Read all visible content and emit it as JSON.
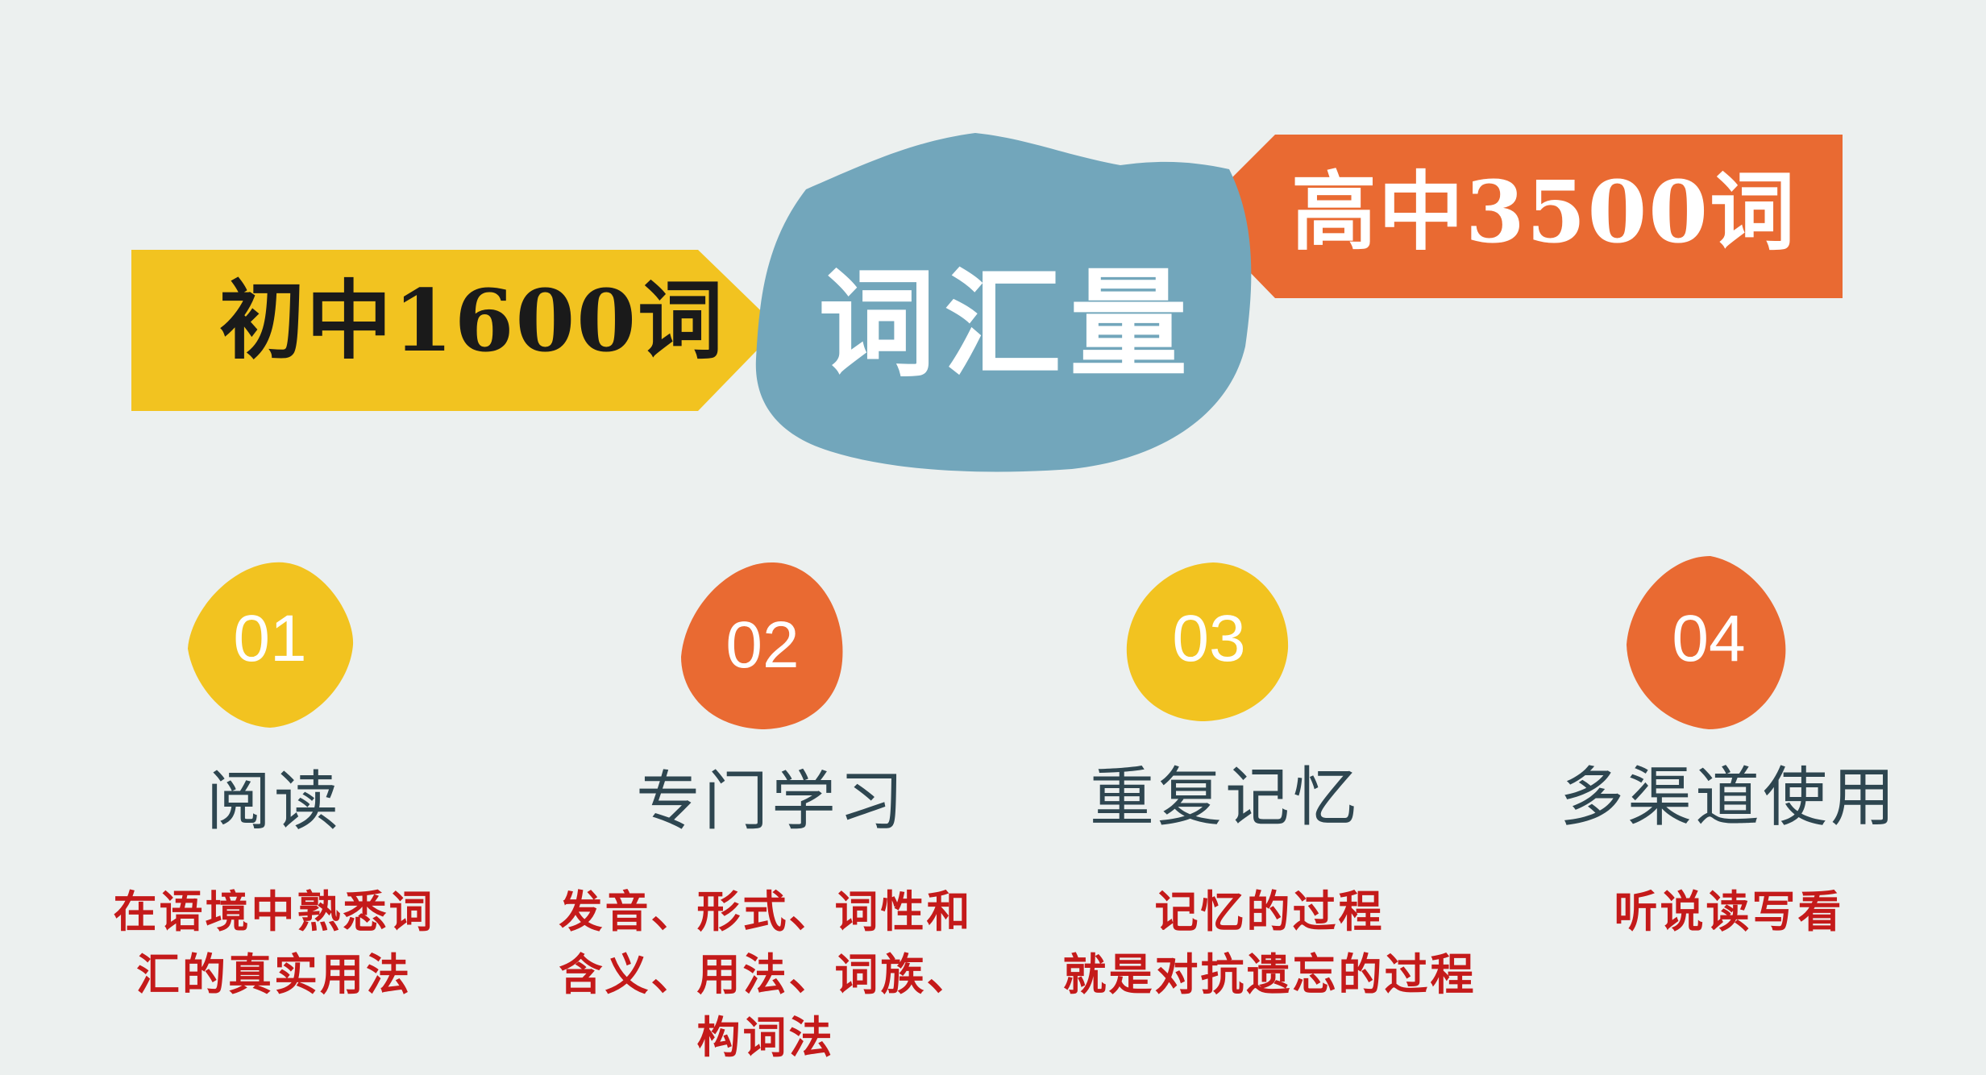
{
  "header": {
    "left_arrow": "初中1600词",
    "center": "词汇量",
    "right_arrow": "高中3500词"
  },
  "colors": {
    "background": "#ecf0ef",
    "yellow": "#f2c320",
    "orange": "#e96a32",
    "blue_blob": "#72a6bb",
    "title_text": "#2e4650",
    "desc_text": "#c41a1a"
  },
  "items": [
    {
      "number": "01",
      "title": "阅读",
      "desc_lines": [
        "在语境中熟悉词",
        "汇的真实用法"
      ]
    },
    {
      "number": "02",
      "title": "专门学习",
      "desc_lines": [
        "发音、形式、词性和",
        "含义、用法、词族、",
        "构词法"
      ]
    },
    {
      "number": "03",
      "title": "重复记忆",
      "desc_lines": [
        "记忆的过程",
        "就是对抗遗忘的过程"
      ]
    },
    {
      "number": "04",
      "title": "多渠道使用",
      "desc_lines": [
        "听说读写看"
      ]
    }
  ]
}
